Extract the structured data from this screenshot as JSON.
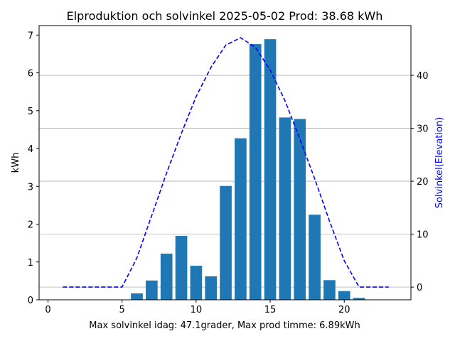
{
  "chart_data": {
    "type": "bar",
    "title": "Elproduktion och solvinkel 2025-05-02 Prod: 38.68 kWh",
    "xlabel": "Max solvinkel idag: 47.1grader, Max prod timme: 6.89kWh",
    "ylabel": "kWh",
    "y2label": "Solvinkel(Elevation)",
    "xlim": [
      -0.6,
      24.5
    ],
    "ylim": [
      0,
      7.25
    ],
    "y2lim": [
      -2.4,
      49.4
    ],
    "xticks": [
      0,
      5,
      10,
      15,
      20
    ],
    "yticks": [
      0,
      1,
      2,
      3,
      4,
      5,
      6,
      7
    ],
    "y2ticks": [
      0,
      10,
      20,
      30,
      40
    ],
    "y2grid": true,
    "bar_color": "#1f77b4",
    "line_color": "#0000ff",
    "series": [
      {
        "type": "bar",
        "x": [
          6,
          7,
          8,
          9,
          10,
          11,
          12,
          13,
          14,
          15,
          16,
          17,
          18,
          19,
          20,
          21
        ],
        "values": [
          0.17,
          0.51,
          1.22,
          1.69,
          0.9,
          0.62,
          3.01,
          4.27,
          6.76,
          6.89,
          4.82,
          4.78,
          2.25,
          0.52,
          0.23,
          0.05
        ]
      },
      {
        "type": "line",
        "axis": "right",
        "style": "dashed",
        "x": [
          1,
          2,
          3,
          4,
          5,
          6,
          7,
          8,
          9,
          10,
          11,
          12,
          13,
          14,
          15,
          16,
          17,
          18,
          19,
          20,
          21,
          22,
          23
        ],
        "values": [
          0,
          0,
          0,
          0,
          0,
          5.5,
          13.5,
          21.5,
          29,
          36,
          41.5,
          45.7,
          47.1,
          45.3,
          41,
          35.2,
          28,
          20.5,
          12.5,
          5,
          0,
          0,
          0
        ]
      }
    ]
  }
}
